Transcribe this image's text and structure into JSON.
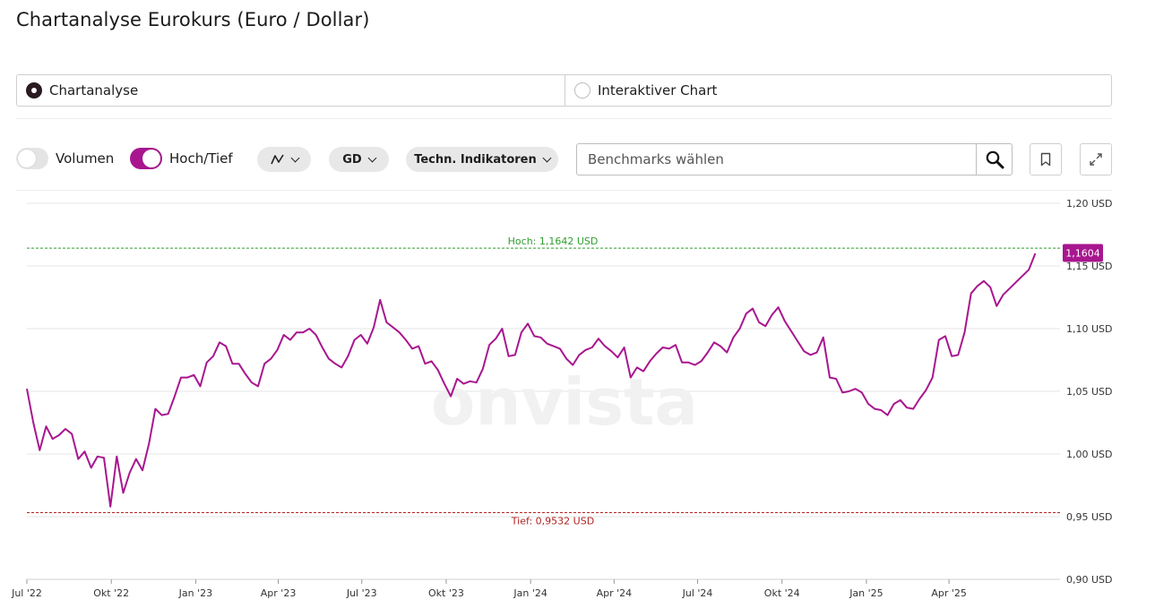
{
  "page": {
    "title": "Chartanalyse Eurokurs (Euro / Dollar)"
  },
  "mode": {
    "options": [
      {
        "label": "Chartanalyse",
        "selected": true
      },
      {
        "label": "Interaktiver Chart",
        "selected": false
      }
    ]
  },
  "toolbar": {
    "volumen_label": "Volumen",
    "volumen_on": false,
    "hochtief_label": "Hoch/Tief",
    "hochtief_on": true,
    "charttype_icon": "line-chart-icon",
    "gd_label": "GD",
    "indikatoren_label": "Techn. Indikatoren",
    "benchmark_placeholder": "Benchmarks wählen",
    "search_icon": "search-icon",
    "bookmark_icon": "bookmark-icon",
    "expand_icon": "expand-icon"
  },
  "chart_data": {
    "type": "line",
    "watermark": "onvista",
    "series_color": "#a8168f",
    "high_color": "#2f9e2f",
    "low_color": "#b22222",
    "ylim": [
      0.9,
      1.2
    ],
    "y_ticks": [
      {
        "value": 1.2,
        "label": "1,20 USD"
      },
      {
        "value": 1.15,
        "label": "1,15 USD"
      },
      {
        "value": 1.1,
        "label": "1,10 USD"
      },
      {
        "value": 1.05,
        "label": "1,05 USD"
      },
      {
        "value": 1.0,
        "label": "1,00 USD"
      },
      {
        "value": 0.95,
        "label": "0,95 USD"
      },
      {
        "value": 0.9,
        "label": "0,90 USD"
      }
    ],
    "x_ticks": [
      {
        "date": "2022-07-01",
        "label": "Jul '22"
      },
      {
        "date": "2022-10-01",
        "label": "Okt '22"
      },
      {
        "date": "2023-01-01",
        "label": "Jan '23"
      },
      {
        "date": "2023-04-01",
        "label": "Apr '23"
      },
      {
        "date": "2023-07-01",
        "label": "Jul '23"
      },
      {
        "date": "2023-10-01",
        "label": "Okt '23"
      },
      {
        "date": "2024-01-01",
        "label": "Jan '24"
      },
      {
        "date": "2024-04-01",
        "label": "Apr '24"
      },
      {
        "date": "2024-07-01",
        "label": "Jul '24"
      },
      {
        "date": "2024-10-01",
        "label": "Okt '24"
      },
      {
        "date": "2025-01-01",
        "label": "Jan '25"
      },
      {
        "date": "2025-04-01",
        "label": "Apr '25"
      }
    ],
    "x_range": [
      "2022-07-01",
      "2025-07-31"
    ],
    "high": {
      "value": 1.1642,
      "label": "Hoch: 1,1642 USD"
    },
    "low": {
      "value": 0.9532,
      "label": "Tief: 0,9532 USD"
    },
    "last": {
      "value": 1.1604,
      "label": "1,1604"
    },
    "series": [
      {
        "points": [
          [
            "2022-07-01",
            1.052
          ],
          [
            "2022-07-08",
            1.025
          ],
          [
            "2022-07-15",
            1.003
          ],
          [
            "2022-07-22",
            1.022
          ],
          [
            "2022-07-29",
            1.012
          ],
          [
            "2022-08-05",
            1.015
          ],
          [
            "2022-08-12",
            1.02
          ],
          [
            "2022-08-19",
            1.016
          ],
          [
            "2022-08-26",
            0.996
          ],
          [
            "2022-09-02",
            1.002
          ],
          [
            "2022-09-09",
            0.989
          ],
          [
            "2022-09-16",
            0.998
          ],
          [
            "2022-09-23",
            0.997
          ],
          [
            "2022-09-30",
            0.958
          ],
          [
            "2022-10-07",
            0.998
          ],
          [
            "2022-10-14",
            0.969
          ],
          [
            "2022-10-21",
            0.985
          ],
          [
            "2022-10-28",
            0.996
          ],
          [
            "2022-11-04",
            0.987
          ],
          [
            "2022-11-11",
            1.008
          ],
          [
            "2022-11-18",
            1.036
          ],
          [
            "2022-11-25",
            1.031
          ],
          [
            "2022-12-02",
            1.032
          ],
          [
            "2022-12-09",
            1.046
          ],
          [
            "2022-12-16",
            1.061
          ],
          [
            "2022-12-23",
            1.061
          ],
          [
            "2022-12-30",
            1.063
          ],
          [
            "2023-01-06",
            1.054
          ],
          [
            "2023-01-13",
            1.073
          ],
          [
            "2023-01-20",
            1.078
          ],
          [
            "2023-01-27",
            1.089
          ],
          [
            "2023-02-03",
            1.086
          ],
          [
            "2023-02-10",
            1.072
          ],
          [
            "2023-02-17",
            1.072
          ],
          [
            "2023-02-24",
            1.064
          ],
          [
            "2023-03-03",
            1.057
          ],
          [
            "2023-03-10",
            1.054
          ],
          [
            "2023-03-17",
            1.072
          ],
          [
            "2023-03-24",
            1.076
          ],
          [
            "2023-03-31",
            1.083
          ],
          [
            "2023-04-07",
            1.095
          ],
          [
            "2023-04-14",
            1.091
          ],
          [
            "2023-04-21",
            1.097
          ],
          [
            "2023-04-28",
            1.097
          ],
          [
            "2023-05-05",
            1.1
          ],
          [
            "2023-05-12",
            1.095
          ],
          [
            "2023-05-19",
            1.085
          ],
          [
            "2023-05-26",
            1.076
          ],
          [
            "2023-06-02",
            1.072
          ],
          [
            "2023-06-09",
            1.069
          ],
          [
            "2023-06-16",
            1.078
          ],
          [
            "2023-06-23",
            1.091
          ],
          [
            "2023-06-30",
            1.095
          ],
          [
            "2023-07-07",
            1.088
          ],
          [
            "2023-07-14",
            1.101
          ],
          [
            "2023-07-21",
            1.123
          ],
          [
            "2023-07-28",
            1.105
          ],
          [
            "2023-08-04",
            1.101
          ],
          [
            "2023-08-11",
            1.097
          ],
          [
            "2023-08-18",
            1.091
          ],
          [
            "2023-08-25",
            1.084
          ],
          [
            "2023-09-01",
            1.086
          ],
          [
            "2023-09-08",
            1.072
          ],
          [
            "2023-09-15",
            1.074
          ],
          [
            "2023-09-22",
            1.067
          ],
          [
            "2023-09-29",
            1.056
          ],
          [
            "2023-10-06",
            1.046
          ],
          [
            "2023-10-13",
            1.06
          ],
          [
            "2023-10-20",
            1.056
          ],
          [
            "2023-10-27",
            1.058
          ],
          [
            "2023-11-03",
            1.057
          ],
          [
            "2023-11-10",
            1.068
          ],
          [
            "2023-11-17",
            1.087
          ],
          [
            "2023-11-24",
            1.092
          ],
          [
            "2023-12-01",
            1.1
          ],
          [
            "2023-12-08",
            1.078
          ],
          [
            "2023-12-15",
            1.079
          ],
          [
            "2023-12-22",
            1.097
          ],
          [
            "2023-12-29",
            1.104
          ],
          [
            "2024-01-05",
            1.094
          ],
          [
            "2024-01-12",
            1.093
          ],
          [
            "2024-01-19",
            1.088
          ],
          [
            "2024-01-26",
            1.086
          ],
          [
            "2024-02-02",
            1.084
          ],
          [
            "2024-02-09",
            1.076
          ],
          [
            "2024-02-16",
            1.071
          ],
          [
            "2024-02-23",
            1.079
          ],
          [
            "2024-03-01",
            1.083
          ],
          [
            "2024-03-08",
            1.085
          ],
          [
            "2024-03-15",
            1.092
          ],
          [
            "2024-03-22",
            1.086
          ],
          [
            "2024-03-29",
            1.082
          ],
          [
            "2024-04-05",
            1.077
          ],
          [
            "2024-04-12",
            1.085
          ],
          [
            "2024-04-19",
            1.061
          ],
          [
            "2024-04-26",
            1.069
          ],
          [
            "2024-05-03",
            1.066
          ],
          [
            "2024-05-10",
            1.074
          ],
          [
            "2024-05-17",
            1.08
          ],
          [
            "2024-05-24",
            1.085
          ],
          [
            "2024-05-31",
            1.084
          ],
          [
            "2024-06-07",
            1.087
          ],
          [
            "2024-06-14",
            1.073
          ],
          [
            "2024-06-21",
            1.073
          ],
          [
            "2024-06-28",
            1.071
          ],
          [
            "2024-07-05",
            1.074
          ],
          [
            "2024-07-12",
            1.081
          ],
          [
            "2024-07-19",
            1.089
          ],
          [
            "2024-07-26",
            1.086
          ],
          [
            "2024-08-02",
            1.081
          ],
          [
            "2024-08-09",
            1.093
          ],
          [
            "2024-08-16",
            1.1
          ],
          [
            "2024-08-23",
            1.112
          ],
          [
            "2024-08-30",
            1.116
          ],
          [
            "2024-09-06",
            1.105
          ],
          [
            "2024-09-13",
            1.102
          ],
          [
            "2024-09-20",
            1.111
          ],
          [
            "2024-09-27",
            1.117
          ],
          [
            "2024-10-04",
            1.106
          ],
          [
            "2024-10-11",
            1.098
          ],
          [
            "2024-10-18",
            1.09
          ],
          [
            "2024-10-25",
            1.082
          ],
          [
            "2024-11-01",
            1.079
          ],
          [
            "2024-11-08",
            1.081
          ],
          [
            "2024-11-15",
            1.093
          ],
          [
            "2024-11-22",
            1.061
          ],
          [
            "2024-11-29",
            1.06
          ],
          [
            "2024-12-06",
            1.049
          ],
          [
            "2024-12-13",
            1.05
          ],
          [
            "2024-12-20",
            1.052
          ],
          [
            "2024-12-27",
            1.049
          ],
          [
            "2025-01-03",
            1.04
          ],
          [
            "2025-01-10",
            1.036
          ],
          [
            "2025-01-17",
            1.035
          ],
          [
            "2025-01-24",
            1.031
          ],
          [
            "2025-01-31",
            1.04
          ],
          [
            "2025-02-07",
            1.043
          ],
          [
            "2025-02-14",
            1.037
          ],
          [
            "2025-02-21",
            1.036
          ],
          [
            "2025-02-28",
            1.044
          ],
          [
            "2025-03-07",
            1.051
          ],
          [
            "2025-03-14",
            1.061
          ],
          [
            "2025-03-21",
            1.091
          ],
          [
            "2025-03-28",
            1.094
          ],
          [
            "2025-04-04",
            1.078
          ],
          [
            "2025-04-11",
            1.079
          ],
          [
            "2025-04-18",
            1.097
          ],
          [
            "2025-04-25",
            1.128
          ],
          [
            "2025-05-02",
            1.134
          ],
          [
            "2025-05-09",
            1.138
          ],
          [
            "2025-05-16",
            1.133
          ],
          [
            "2025-05-23",
            1.118
          ],
          [
            "2025-05-30",
            1.127
          ],
          [
            "2025-06-06",
            1.132
          ],
          [
            "2025-06-13",
            1.137
          ],
          [
            "2025-06-20",
            1.142
          ],
          [
            "2025-06-27",
            1.147
          ],
          [
            "2025-07-04",
            1.16
          ]
        ]
      }
    ]
  }
}
